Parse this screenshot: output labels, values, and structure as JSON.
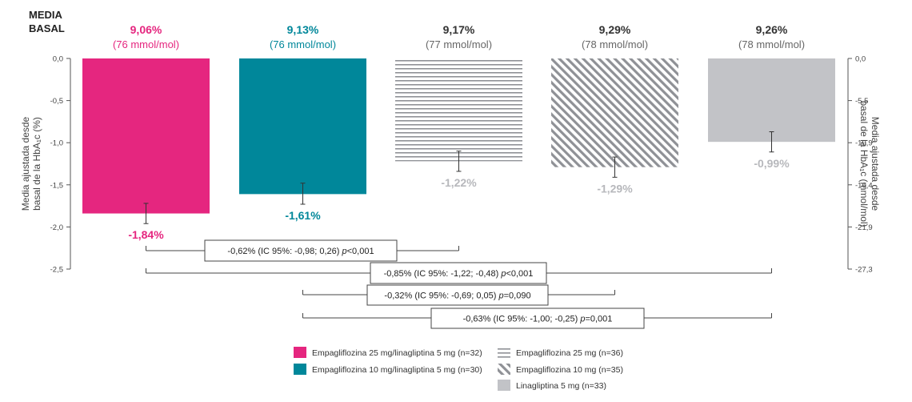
{
  "baseline_label": [
    "MEDIA",
    "BASAL"
  ],
  "colors": {
    "magenta": "#e5267f",
    "teal": "#00879a",
    "gray": "#c2c3c7",
    "stripe": "#8f9196",
    "neg_gray": "#b7b8bc",
    "axis": "#555555"
  },
  "chart_data": {
    "type": "bar",
    "ylabel_left": [
      "Media ajustada desde",
      "basal de la HbA₁c (%)"
    ],
    "ylabel_right": [
      "Media ajustada desde",
      "basal de la HbA₁c (mmol/mol)"
    ],
    "ylim": [
      -2.5,
      0
    ],
    "yticks_left": [
      "0,0",
      "-0,5",
      "-1,0",
      "-1,5",
      "-2,0",
      "-2,5"
    ],
    "yticks_right": [
      "0,0",
      "-5,5",
      "-10,9",
      "-16,4",
      "-21,9",
      "-27,3"
    ],
    "yticks_values": [
      0,
      -0.5,
      -1.0,
      -1.5,
      -2.0,
      -2.5
    ],
    "series": [
      {
        "baseline_pct": "9,06%",
        "baseline_mmol": "(76 mmol/mol)",
        "value": -1.84,
        "label": "-1,84%",
        "err_low": -1.96,
        "err_high": -1.72,
        "style": "magenta"
      },
      {
        "baseline_pct": "9,13%",
        "baseline_mmol": "(76 mmol/mol)",
        "value": -1.61,
        "label": "-1,61%",
        "err_low": -1.73,
        "err_high": -1.48,
        "style": "teal"
      },
      {
        "baseline_pct": "9,17%",
        "baseline_mmol": "(77 mmol/mol)",
        "value": -1.22,
        "label": "-1,22%",
        "err_low": -1.34,
        "err_high": -1.1,
        "style": "hstripe"
      },
      {
        "baseline_pct": "9,29%",
        "baseline_mmol": "(78 mmol/mol)",
        "value": -1.29,
        "label": "-1,29%",
        "err_low": -1.41,
        "err_high": -1.17,
        "style": "diag"
      },
      {
        "baseline_pct": "9,26%",
        "baseline_mmol": "(78 mmol/mol)",
        "value": -0.99,
        "label": "-0,99%",
        "err_low": -1.11,
        "err_high": -0.87,
        "style": "gray"
      }
    ],
    "comparisons": [
      {
        "from": 0,
        "to": 2,
        "text": "-0,62% (IC 95%: -0,98; 0,26) ",
        "p": "p",
        "ptext": "<0,001"
      },
      {
        "from": 0,
        "to": 4,
        "text": "-0,85% (IC 95%: -1,22; -0,48) ",
        "p": "p",
        "ptext": "<0,001"
      },
      {
        "from": 1,
        "to": 3,
        "text": "-0,32% (IC 95%: -0,69; 0,05) ",
        "p": "p",
        "ptext": "=0,090"
      },
      {
        "from": 1,
        "to": 4,
        "text": "-0,63% (IC 95%: -1,00; -0,25) ",
        "p": "p",
        "ptext": "=0,001"
      }
    ],
    "legend": [
      {
        "label": "Empagliflozina 25 mg/linagliptina 5 mg (n=32)",
        "style": "magenta"
      },
      {
        "label": "Empagliflozina  10 mg/linagliptina 5 mg (n=30)",
        "style": "teal"
      },
      {
        "label": "Empagliflozina  25 mg (n=36)",
        "style": "hstripe"
      },
      {
        "label": "Empagliflozina  10 mg (n=35)",
        "style": "diag"
      },
      {
        "label": "Linagliptina 5 mg (n=33)",
        "style": "gray"
      }
    ]
  }
}
